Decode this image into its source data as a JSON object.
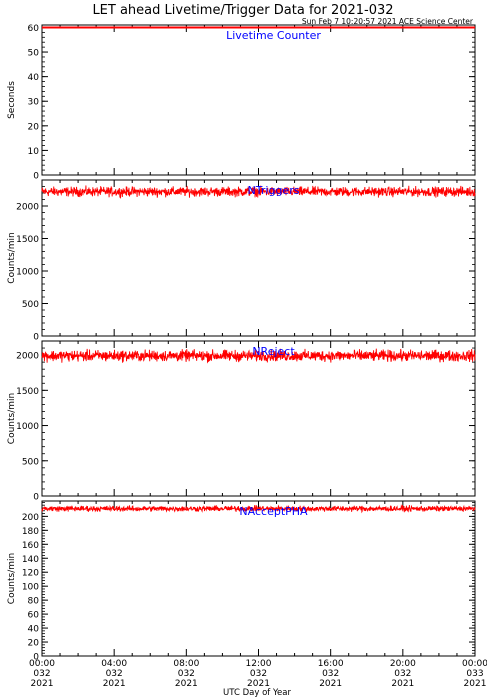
{
  "title": "LET ahead Livetime/Trigger Data for 2021-032",
  "timestamp": "Sun Feb  7 10:20:57 2021 ACE Science Center",
  "xlabel": "UTC Day of Year",
  "x_ticks": [
    {
      "time": "00:00",
      "doy": "032",
      "year": "2021"
    },
    {
      "time": "04:00",
      "doy": "032",
      "year": "2021"
    },
    {
      "time": "08:00",
      "doy": "032",
      "year": "2021"
    },
    {
      "time": "12:00",
      "doy": "032",
      "year": "2021"
    },
    {
      "time": "16:00",
      "doy": "032",
      "year": "2021"
    },
    {
      "time": "20:00",
      "doy": "032",
      "year": "2021"
    },
    {
      "time": "00:00",
      "doy": "033",
      "year": "2021"
    }
  ],
  "colors": {
    "trace": "#ff0000",
    "label": "#0000ff",
    "axis": "#000000"
  },
  "chart_data": [
    {
      "type": "line",
      "series": [
        {
          "name": "Livetime Counter",
          "mean": 60,
          "noise": 0
        }
      ],
      "ylabel": "Seconds",
      "ylim": [
        0,
        61
      ],
      "yticks": [
        0,
        10,
        20,
        30,
        40,
        50,
        60
      ],
      "xlim_hours": [
        0,
        24
      ]
    },
    {
      "type": "line",
      "series": [
        {
          "name": "NTriggers",
          "mean": 2220,
          "noise": 55
        }
      ],
      "ylabel": "Counts/min",
      "ylim": [
        0,
        2400
      ],
      "yticks": [
        0,
        500,
        1000,
        1500,
        2000
      ],
      "xlim_hours": [
        0,
        24
      ]
    },
    {
      "type": "line",
      "series": [
        {
          "name": "NReject",
          "mean": 1990,
          "noise": 60
        }
      ],
      "ylabel": "Counts/min",
      "ylim": [
        0,
        2200
      ],
      "yticks": [
        0,
        500,
        1000,
        1500,
        2000
      ],
      "xlim_hours": [
        0,
        24
      ]
    },
    {
      "type": "line",
      "series": [
        {
          "name": "NAcceptPHA",
          "mean": 211,
          "noise": 3
        }
      ],
      "ylabel": "Counts/min",
      "ylim": [
        0,
        222
      ],
      "yticks": [
        0,
        20,
        40,
        60,
        80,
        100,
        120,
        140,
        160,
        180,
        200
      ],
      "xlim_hours": [
        0,
        24
      ]
    }
  ]
}
